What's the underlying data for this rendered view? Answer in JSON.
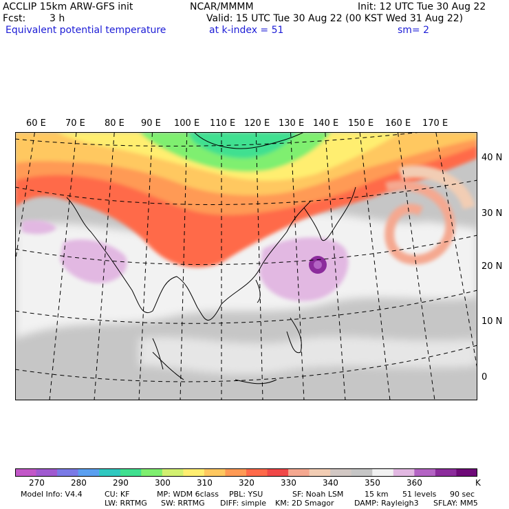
{
  "header": {
    "model_title": "ACCLIP 15km ARW-GFS init",
    "center": "NCAR/MMMM",
    "init": "Init: 12 UTC Tue 30 Aug 22",
    "fcst_label": "Fcst:",
    "fcst_value": "3 h",
    "valid": "Valid: 15 UTC Tue 30 Aug 22 (00 KST Wed 31 Aug 22)",
    "field": "Equivalent potential temperature",
    "level": "at k-index =  51",
    "smoothing": "sm= 2"
  },
  "map": {
    "lon_labels": [
      "60 E",
      "70 E",
      "80 E",
      "90 E",
      "100 E",
      "110 E",
      "120 E",
      "130 E",
      "140 E",
      "150 E",
      "160 E",
      "170 E"
    ],
    "lat_labels": [
      "40 N",
      "30 N",
      "20 N",
      "10 N",
      "0"
    ]
  },
  "colorbar": {
    "unit": "K",
    "ticks": [
      "270",
      "280",
      "290",
      "300",
      "310",
      "320",
      "330",
      "340",
      "350",
      "360"
    ],
    "colors": [
      "#c257c8",
      "#a05ad0",
      "#7a7ae6",
      "#5a9ff0",
      "#30c8c0",
      "#40e090",
      "#7fef6f",
      "#d2f070",
      "#ffee70",
      "#ffc860",
      "#ff9a55",
      "#ff6a4a",
      "#f04848",
      "#f5a890",
      "#f2cdb4",
      "#d2c8c4",
      "#c6c6c6",
      "#f2f2f2",
      "#e2b8e2",
      "#b464c4",
      "#8c2c9c",
      "#6e0a78"
    ]
  },
  "model_info": {
    "line1": [
      "Model Info: V4.4",
      "CU: KF",
      "MP: WDM 6class",
      "PBL: YSU",
      "SF: Noah LSM",
      "15 km",
      "51 levels",
      "90 sec"
    ],
    "line2": [
      "LW: RRTMG",
      "SW: RRTMG",
      "DIFF: simple",
      "KM: 2D Smagor",
      "DAMP: Rayleigh3",
      "SFLAY: MM5"
    ]
  }
}
